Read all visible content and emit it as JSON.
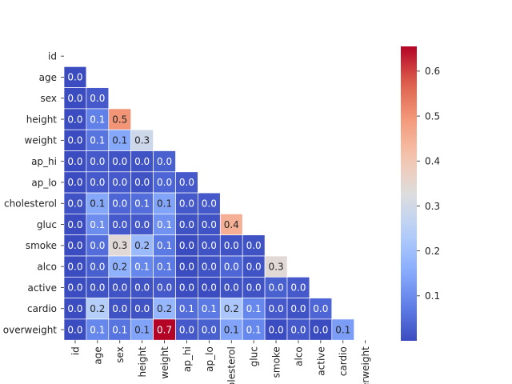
{
  "chart_data": {
    "type": "heatmap",
    "title": "",
    "variables": [
      "id",
      "age",
      "sex",
      "height",
      "weight",
      "ap_hi",
      "ap_lo",
      "cholesterol",
      "gluc",
      "smoke",
      "alco",
      "active",
      "cardio",
      "overweight"
    ],
    "mask": "upper-triangle-including-diagonal",
    "values": [
      [
        null,
        null,
        null,
        null,
        null,
        null,
        null,
        null,
        null,
        null,
        null,
        null,
        null,
        null
      ],
      [
        0.0,
        null,
        null,
        null,
        null,
        null,
        null,
        null,
        null,
        null,
        null,
        null,
        null,
        null
      ],
      [
        0.0,
        0.0,
        null,
        null,
        null,
        null,
        null,
        null,
        null,
        null,
        null,
        null,
        null,
        null
      ],
      [
        0.0,
        0.1,
        0.5,
        null,
        null,
        null,
        null,
        null,
        null,
        null,
        null,
        null,
        null,
        null
      ],
      [
        0.0,
        0.1,
        0.1,
        0.3,
        null,
        null,
        null,
        null,
        null,
        null,
        null,
        null,
        null,
        null
      ],
      [
        0.0,
        0.0,
        0.0,
        0.0,
        0.0,
        null,
        null,
        null,
        null,
        null,
        null,
        null,
        null,
        null
      ],
      [
        0.0,
        0.0,
        0.0,
        0.0,
        0.0,
        0.0,
        null,
        null,
        null,
        null,
        null,
        null,
        null,
        null
      ],
      [
        0.0,
        0.1,
        0.0,
        0.1,
        0.1,
        0.0,
        0.0,
        null,
        null,
        null,
        null,
        null,
        null,
        null
      ],
      [
        0.0,
        0.1,
        0.0,
        0.0,
        0.1,
        0.0,
        0.0,
        0.4,
        null,
        null,
        null,
        null,
        null,
        null
      ],
      [
        0.0,
        0.0,
        0.3,
        0.2,
        0.1,
        0.0,
        0.0,
        0.0,
        0.0,
        null,
        null,
        null,
        null,
        null
      ],
      [
        0.0,
        0.0,
        0.2,
        0.1,
        0.1,
        0.0,
        0.0,
        0.0,
        0.0,
        0.3,
        null,
        null,
        null,
        null
      ],
      [
        0.0,
        0.0,
        0.0,
        0.0,
        0.0,
        0.0,
        0.0,
        0.0,
        0.0,
        0.0,
        0.0,
        null,
        null,
        null
      ],
      [
        0.0,
        0.2,
        0.0,
        0.0,
        0.2,
        0.1,
        0.1,
        0.2,
        0.1,
        0.0,
        0.0,
        0.0,
        null,
        null
      ],
      [
        0.0,
        0.1,
        0.1,
        0.1,
        0.7,
        0.0,
        0.0,
        0.1,
        0.1,
        0.0,
        0.0,
        0.0,
        0.1,
        null
      ]
    ],
    "color_values": [
      [
        null,
        null,
        null,
        null,
        null,
        null,
        null,
        null,
        null,
        null,
        null,
        null,
        null,
        null
      ],
      [
        0.0,
        null,
        null,
        null,
        null,
        null,
        null,
        null,
        null,
        null,
        null,
        null,
        null,
        null
      ],
      [
        0.0,
        0.02,
        null,
        null,
        null,
        null,
        null,
        null,
        null,
        null,
        null,
        null,
        null,
        null
      ],
      [
        0.0,
        0.08,
        0.5,
        null,
        null,
        null,
        null,
        null,
        null,
        null,
        null,
        null,
        null,
        null
      ],
      [
        0.0,
        0.06,
        0.15,
        0.29,
        null,
        null,
        null,
        null,
        null,
        null,
        null,
        null,
        null,
        null
      ],
      [
        0.0,
        0.02,
        0.01,
        0.01,
        0.03,
        null,
        null,
        null,
        null,
        null,
        null,
        null,
        null,
        null
      ],
      [
        0.0,
        0.02,
        0.02,
        0.01,
        0.04,
        0.02,
        null,
        null,
        null,
        null,
        null,
        null,
        null,
        null
      ],
      [
        0.01,
        0.15,
        0.04,
        0.05,
        0.14,
        0.02,
        0.02,
        null,
        null,
        null,
        null,
        null,
        null,
        null
      ],
      [
        0.0,
        0.1,
        0.02,
        0.02,
        0.11,
        0.01,
        0.01,
        0.45,
        null,
        null,
        null,
        null,
        null,
        null
      ],
      [
        0.0,
        0.05,
        0.34,
        0.19,
        0.07,
        0.0,
        0.01,
        0.01,
        0.01,
        null,
        null,
        null,
        null,
        null
      ],
      [
        0.0,
        0.03,
        0.17,
        0.09,
        0.07,
        0.0,
        0.01,
        0.04,
        0.01,
        0.34,
        null,
        null,
        null,
        null
      ],
      [
        0.0,
        0.01,
        0.01,
        0.01,
        0.02,
        0.0,
        0.0,
        0.01,
        0.01,
        0.03,
        0.02,
        null,
        null,
        null
      ],
      [
        0.0,
        0.24,
        0.01,
        0.01,
        0.18,
        0.05,
        0.07,
        0.22,
        0.09,
        0.02,
        0.01,
        0.04,
        null,
        null
      ],
      [
        0.0,
        0.09,
        0.06,
        0.14,
        0.66,
        0.02,
        0.03,
        0.14,
        0.09,
        0.0,
        0.02,
        0.0,
        0.13,
        null
      ]
    ],
    "colorbar": {
      "colormap": "coolwarm",
      "range": [
        0.0,
        0.655
      ],
      "ticks": [
        0.1,
        0.2,
        0.3,
        0.4,
        0.5,
        0.6
      ],
      "tick_labels": [
        "0.1",
        "0.2",
        "0.3",
        "0.4",
        "0.5",
        "0.6"
      ]
    },
    "annotation_format": "0.0",
    "grid": "white cell borders",
    "xlabel": "",
    "ylabel": ""
  }
}
